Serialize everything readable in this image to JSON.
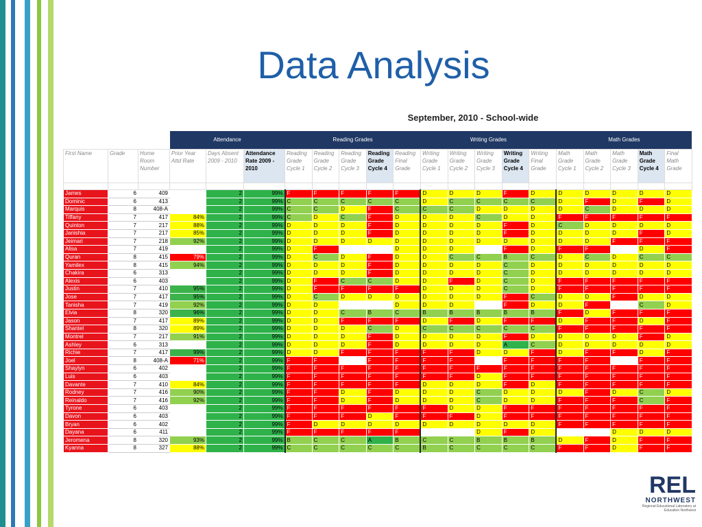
{
  "title": "Data Analysis",
  "subtitle": "September, 2010 - School-wide",
  "table": {
    "group_headers": [
      "Attendance",
      "Reading Grades",
      "Writing Grades",
      "Math Grades"
    ],
    "columns": [
      "First Name",
      "Grade",
      "Home Room Number",
      "Prior Year Attd Rate",
      "Days Absent 2009 - 2010",
      "Attendance Rate 2009 - 2010",
      "Reading Grade Cycle 1",
      "Reading Grade Cycle 2",
      "Reading Grade Cycle 3",
      "Reading Grade Cycle 4",
      "Reading Final Grade",
      "Writing Grade Cycle 1",
      "Writing Grade Cycle 2",
      "Writing Grade Cycle 3",
      "Writing Grade Cycle 4",
      "Writing Final Grade",
      "Math Grade Cycle 1",
      "Math Grade Cycle 2",
      "Math Grade Cycle 3",
      "Math Grade Cycle 4",
      "Final Math Grade"
    ],
    "rows": [
      [
        "James",
        "6",
        "409",
        null,
        "2",
        "99%",
        "F",
        "F",
        "F",
        "F",
        "F",
        "D",
        "D",
        "D",
        "F",
        "D",
        "D",
        "D",
        "D",
        "D",
        "D"
      ],
      [
        "Dominic",
        "6",
        "413",
        null,
        "2",
        "99%",
        "C",
        "C",
        "C",
        "C",
        "C",
        "D",
        "C",
        "C",
        "C",
        "C",
        "D",
        "F",
        "D",
        "F",
        "D"
      ],
      [
        "Marquis",
        "8",
        "408-A",
        null,
        "2",
        "99%",
        "C",
        "C",
        "D",
        "F",
        "C",
        "C",
        "C",
        "D",
        "D",
        "D",
        "D",
        "C",
        "D",
        "D",
        "D"
      ],
      [
        "Tiffany",
        "7",
        "417",
        "84%",
        "2",
        "99%",
        "C",
        "D",
        "C",
        "F",
        "D",
        "D",
        "D",
        "C",
        "D",
        "D",
        "F",
        "F",
        "F",
        "F",
        "F"
      ],
      [
        "Quinton",
        "7",
        "217",
        "88%",
        "2",
        "99%",
        "D",
        "D",
        "D",
        "F",
        "D",
        "D",
        "D",
        "D",
        "F",
        "D",
        "C",
        "D",
        "D",
        "D",
        "D"
      ],
      [
        "Janishia",
        "7",
        "217",
        "85%",
        "2",
        "99%",
        "D",
        "D",
        "D",
        "F",
        "D",
        "D",
        "D",
        "D",
        "F",
        "D",
        "D",
        "D",
        "D",
        "F",
        "D"
      ],
      [
        "Jeimari",
        "7",
        "218",
        "92%",
        "2",
        "99%",
        "D",
        "D",
        "D",
        "D",
        "D",
        "D",
        "D",
        "D",
        "D",
        "D",
        "D",
        "D",
        "F",
        "F",
        "F"
      ],
      [
        "Alisa",
        "7",
        "419",
        null,
        "2",
        "99%",
        "D",
        "F",
        null,
        null,
        "D",
        "D",
        "D",
        null,
        "F",
        "D",
        "F",
        "F",
        null,
        "D",
        "F"
      ],
      [
        "Quran",
        "8",
        "415",
        "79%",
        "2",
        "99%",
        "D",
        "C",
        "D",
        "F",
        "D",
        "D",
        "C",
        "C",
        "B",
        "C",
        "D",
        "C",
        "D",
        "C",
        "C"
      ],
      [
        "Yamilex",
        "8",
        "415",
        "94%",
        "2",
        "99%",
        "D",
        "D",
        "D",
        "F",
        "D",
        "D",
        "D",
        "D",
        "C",
        "D",
        "D",
        "D",
        "D",
        "D",
        "D"
      ],
      [
        "Chakira",
        "6",
        "313",
        null,
        "2",
        "99%",
        "D",
        "D",
        "D",
        "F",
        "D",
        "D",
        "D",
        "D",
        "C",
        "D",
        "D",
        "D",
        "D",
        "D",
        "D"
      ],
      [
        "Alexis",
        "6",
        "403",
        null,
        "2",
        "99%",
        "D",
        "F",
        "C",
        "C",
        "D",
        "D",
        "F",
        "D",
        "C",
        "D",
        "F",
        "F",
        "F",
        "F",
        "F"
      ],
      [
        "Justin",
        "7",
        "410",
        "95%",
        "2",
        "99%",
        "D",
        "F",
        "F",
        "F",
        "F",
        "D",
        "D",
        "D",
        "C",
        "D",
        "F",
        "F",
        "F",
        "F",
        "F"
      ],
      [
        "Jose",
        "7",
        "417",
        "95%",
        "2",
        "99%",
        "D",
        "C",
        "D",
        "D",
        "D",
        "D",
        "D",
        "D",
        "F",
        "C",
        "D",
        "D",
        "F",
        "D",
        "D"
      ],
      [
        "Tanisha",
        "7",
        "419",
        "92%",
        "2",
        "99%",
        "D",
        "D",
        null,
        null,
        "D",
        "D",
        "D",
        null,
        "F",
        "D",
        "D",
        "F",
        null,
        "C",
        "D"
      ],
      [
        "Elvia",
        "8",
        "320",
        "96%",
        "2",
        "99%",
        "D",
        "D",
        "C",
        "B",
        "C",
        "B",
        "B",
        "B",
        "B",
        "B",
        "F",
        "D",
        "F",
        "F",
        "F"
      ],
      [
        "Jason",
        "7",
        "417",
        "89%",
        "2",
        "99%",
        "D",
        "D",
        "F",
        "F",
        "F",
        "D",
        "F",
        "D",
        "F",
        "F",
        "D",
        "F",
        "F",
        "D",
        "F"
      ],
      [
        "Shantel",
        "8",
        "320",
        "89%",
        "2",
        "99%",
        "D",
        "D",
        "D",
        "C",
        "D",
        "C",
        "C",
        "C",
        "C",
        "C",
        "F",
        "F",
        "F",
        "F",
        "F"
      ],
      [
        "Montrel",
        "7",
        "217",
        "91%",
        "2",
        "99%",
        "D",
        "D",
        "D",
        "F",
        "D",
        "D",
        "D",
        "D",
        "F",
        "D",
        "D",
        "D",
        "D",
        "F",
        "D"
      ],
      [
        "Ashley",
        "6",
        "313",
        null,
        "2",
        "99%",
        "D",
        "D",
        "D",
        "F",
        "D",
        "D",
        "D",
        "D",
        "A",
        "C",
        "D",
        "D",
        "D",
        "D",
        "D"
      ],
      [
        "Richie",
        "7",
        "417",
        "99%",
        "2",
        "99%",
        "D",
        "D",
        "F",
        "F",
        "F",
        "F",
        "F",
        "D",
        "D",
        "F",
        "D",
        "F",
        "F",
        "D",
        "F"
      ],
      [
        "Joel",
        "8",
        "408-A",
        "71%",
        "2",
        "99%",
        "F",
        "F",
        null,
        "F",
        "F",
        "F",
        "F",
        null,
        "F",
        "F",
        "F",
        "F",
        null,
        "F",
        "F"
      ],
      [
        "Shaylyn",
        "6",
        "402",
        null,
        "2",
        "99%",
        "F",
        "F",
        "F",
        "F",
        "F",
        "F",
        "F",
        "F",
        "F",
        "F",
        "F",
        "F",
        "F",
        "F",
        "F"
      ],
      [
        "Luis",
        "6",
        "403",
        null,
        "2",
        "99%",
        "F",
        "F",
        "F",
        "F",
        "F",
        "F",
        "F",
        "D",
        "F",
        "F",
        "F",
        "F",
        "F",
        "F",
        "F"
      ],
      [
        "Davante",
        "7",
        "410",
        "84%",
        "2",
        "99%",
        "F",
        "F",
        "F",
        "F",
        "F",
        "D",
        "D",
        "D",
        "F",
        "D",
        "F",
        "F",
        "F",
        "F",
        "F"
      ],
      [
        "Rodney",
        "7",
        "416",
        "90%",
        "2",
        "99%",
        "F",
        "F",
        "D",
        "F",
        "D",
        "D",
        "D",
        "C",
        "D",
        "D",
        "D",
        "F",
        "D",
        "C",
        "D"
      ],
      [
        "Reinaldo",
        "7",
        "416",
        "92%",
        "2",
        "99%",
        "F",
        "F",
        "D",
        "F",
        "D",
        "D",
        "D",
        "C",
        "D",
        "D",
        "F",
        "F",
        "F",
        "C",
        "F"
      ],
      [
        "Tyrone",
        "6",
        "403",
        null,
        "2",
        "99%",
        "F",
        "F",
        "F",
        "F",
        "F",
        "F",
        "D",
        "D",
        "F",
        "F",
        "F",
        "F",
        "F",
        "F",
        "F"
      ],
      [
        "Davon",
        "6",
        "403",
        null,
        "2",
        "99%",
        "F",
        "F",
        "F",
        "D",
        "F",
        "F",
        "F",
        "D",
        "F",
        "F",
        "F",
        "F",
        "F",
        "F",
        "F"
      ],
      [
        "Bryan",
        "6",
        "402",
        null,
        "2",
        "99%",
        "F",
        "D",
        "D",
        "D",
        "D",
        "D",
        "D",
        "D",
        "D",
        "D",
        "F",
        "F",
        "F",
        "F",
        "F"
      ],
      [
        "Dayana",
        "6",
        "411",
        null,
        "2",
        "99%",
        "F",
        "F",
        "F",
        "F",
        "F",
        null,
        null,
        "D",
        "F",
        "D",
        null,
        null,
        "D",
        "D",
        "D"
      ],
      [
        "Jeromena",
        "8",
        "320",
        "93%",
        "2",
        "99%",
        "B",
        "C",
        "C",
        "A",
        "B",
        "C",
        "C",
        "B",
        "B",
        "B",
        "D",
        "F",
        "D",
        "F",
        "F"
      ],
      [
        "Kyanna",
        "8",
        "327",
        "88%",
        "2",
        "99%",
        "C",
        "C",
        "C",
        "C",
        "C",
        "B",
        "C",
        "C",
        "C",
        "C",
        "F",
        "F",
        "D",
        "F",
        "F"
      ]
    ]
  },
  "logo": {
    "name": "REL",
    "region": "NORTHWEST",
    "tagline": "Regional Educational Laboratory at Education Northwest"
  }
}
